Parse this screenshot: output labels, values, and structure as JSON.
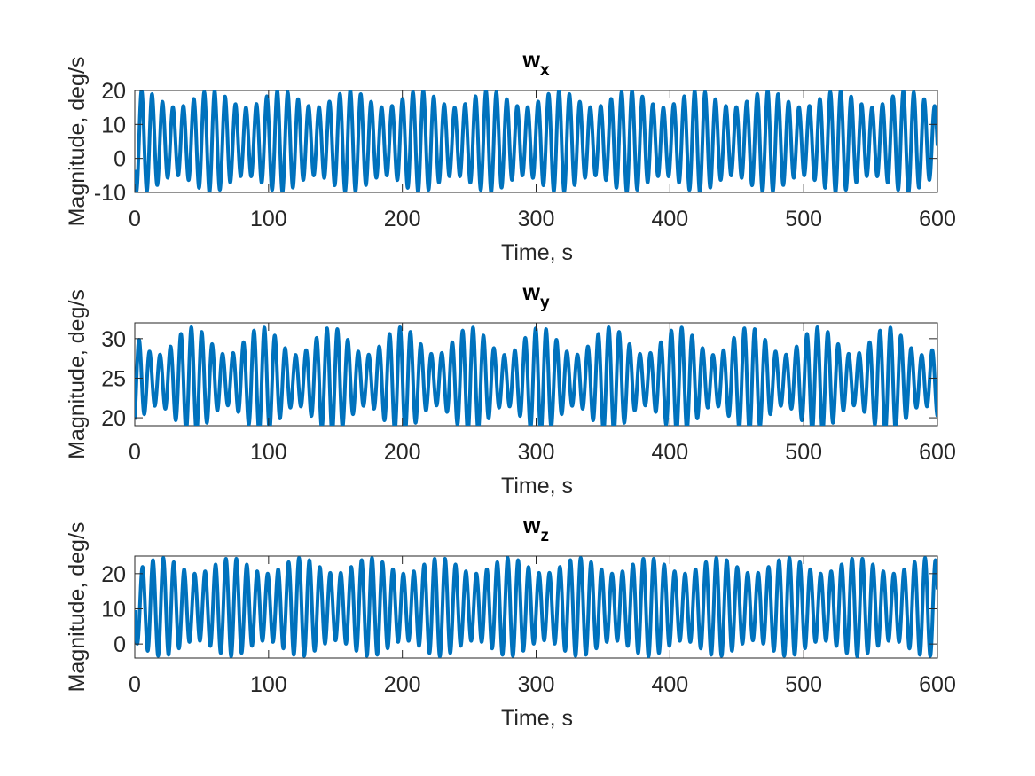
{
  "chart_data": [
    {
      "type": "line",
      "title_main": "w",
      "title_sub": "x",
      "xlabel": "Time, s",
      "ylabel": "Magnitude, deg/s",
      "xlim": [
        0,
        600
      ],
      "ylim": [
        -10,
        20
      ],
      "xticks": [
        "0",
        "100",
        "200",
        "300",
        "400",
        "500",
        "600"
      ],
      "yticks": [
        "-10",
        "0",
        "10",
        "20"
      ],
      "grid": false,
      "series": [
        {
          "color": "#0072BD",
          "offset": 5,
          "amp_mean": 12.5,
          "amp_mod": 2.5,
          "carrier_period_s": 7.8,
          "envelope_period_s": 52,
          "envelope_peak_s": 5,
          "phase_deg": 125
        }
      ]
    },
    {
      "type": "line",
      "title_main": "w",
      "title_sub": "y",
      "xlabel": "Time, s",
      "ylabel": "Magnitude, deg/s",
      "xlim": [
        0,
        600
      ],
      "ylim": [
        19,
        32
      ],
      "xticks": [
        "0",
        "100",
        "200",
        "300",
        "400",
        "500",
        "600"
      ],
      "yticks": [
        "20",
        "25",
        "30"
      ],
      "grid": false,
      "series": [
        {
          "color": "#0072BD",
          "offset": 24.75,
          "amp_mean": 4.95,
          "amp_mod": 1.75,
          "carrier_period_s": 7.8,
          "envelope_period_s": 52,
          "envelope_peak_s": 43,
          "phase_deg": 210
        }
      ]
    },
    {
      "type": "line",
      "title_main": "w",
      "title_sub": "z",
      "xlabel": "Time, s",
      "ylabel": "Magnitude, deg/s",
      "xlim": [
        0,
        600
      ],
      "ylim": [
        -4,
        25
      ],
      "xticks": [
        "0",
        "100",
        "200",
        "300",
        "400",
        "500",
        "600"
      ],
      "yticks": [
        "0",
        "10",
        "20"
      ],
      "grid": false,
      "series": [
        {
          "color": "#0072BD",
          "offset": 10.5,
          "amp_mean": 11.75,
          "amp_mod": 2.25,
          "carrier_period_s": 7.8,
          "envelope_period_s": 52,
          "envelope_peak_s": 20,
          "phase_deg": 95
        }
      ]
    }
  ]
}
